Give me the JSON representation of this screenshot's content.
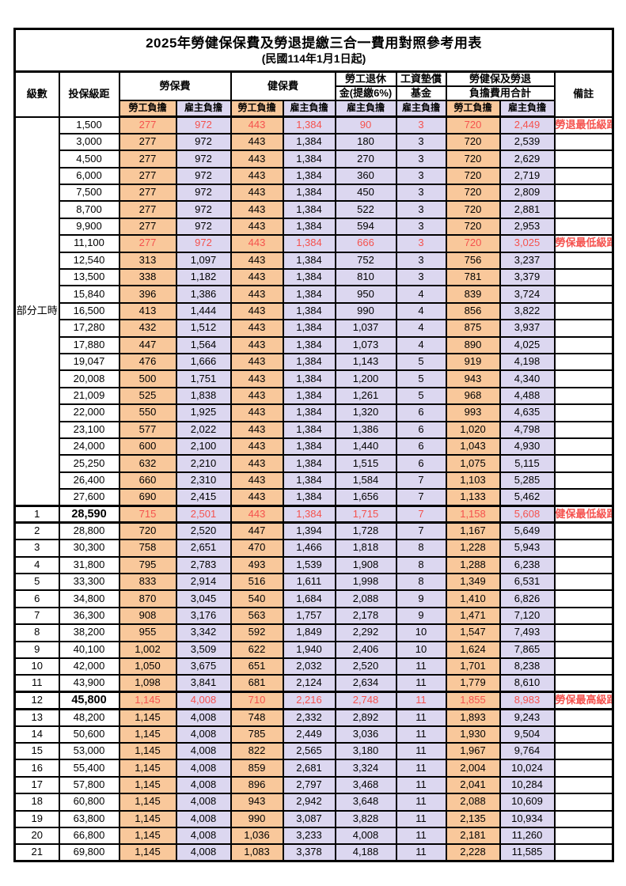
{
  "title": "2025年勞健保保費及勞退提繳三合一費用對照參考用表",
  "subtitle": "(民國114年1月1日起)",
  "colors": {
    "employee_fill": "#F9C89B",
    "employer_fill": "#DCD7F0",
    "red_text": "#F5524E",
    "border": "#000000"
  },
  "header": {
    "level": "級數",
    "bracket": "投保級距",
    "labor_insurance": "勞保費",
    "health_insurance": "健保費",
    "pension_line1": "勞工退休",
    "pension_line2": "金(提繳6%)",
    "wage_fund_line1": "工資墊償",
    "wage_fund_line2": "基金",
    "total_line1": "勞健保及勞退",
    "total_line2": "負擔費用合計",
    "remark": "備註",
    "employee": "勞工負擔",
    "employer": "雇主負擔"
  },
  "part_time": {
    "label": "部分工時",
    "span": 23
  },
  "rows": [
    {
      "level": "",
      "bracket": "1,500",
      "values": [
        "277",
        "972",
        "443",
        "1,384",
        "90",
        "3",
        "720",
        "2,449"
      ],
      "remark": "勞退最低級距",
      "red": true
    },
    {
      "level": "",
      "bracket": "3,000",
      "values": [
        "277",
        "972",
        "443",
        "1,384",
        "180",
        "3",
        "720",
        "2,539"
      ],
      "remark": ""
    },
    {
      "level": "",
      "bracket": "4,500",
      "values": [
        "277",
        "972",
        "443",
        "1,384",
        "270",
        "3",
        "720",
        "2,629"
      ],
      "remark": ""
    },
    {
      "level": "",
      "bracket": "6,000",
      "values": [
        "277",
        "972",
        "443",
        "1,384",
        "360",
        "3",
        "720",
        "2,719"
      ],
      "remark": ""
    },
    {
      "level": "",
      "bracket": "7,500",
      "values": [
        "277",
        "972",
        "443",
        "1,384",
        "450",
        "3",
        "720",
        "2,809"
      ],
      "remark": ""
    },
    {
      "level": "",
      "bracket": "8,700",
      "values": [
        "277",
        "972",
        "443",
        "1,384",
        "522",
        "3",
        "720",
        "2,881"
      ],
      "remark": ""
    },
    {
      "level": "",
      "bracket": "9,900",
      "values": [
        "277",
        "972",
        "443",
        "1,384",
        "594",
        "3",
        "720",
        "2,953"
      ],
      "remark": ""
    },
    {
      "level": "",
      "bracket": "11,100",
      "values": [
        "277",
        "972",
        "443",
        "1,384",
        "666",
        "3",
        "720",
        "3,025"
      ],
      "remark": "勞保最低級距",
      "red": true
    },
    {
      "level": "",
      "bracket": "12,540",
      "values": [
        "313",
        "1,097",
        "443",
        "1,384",
        "752",
        "3",
        "756",
        "3,237"
      ],
      "remark": ""
    },
    {
      "level": "",
      "bracket": "13,500",
      "values": [
        "338",
        "1,182",
        "443",
        "1,384",
        "810",
        "3",
        "781",
        "3,379"
      ],
      "remark": ""
    },
    {
      "level": "",
      "bracket": "15,840",
      "values": [
        "396",
        "1,386",
        "443",
        "1,384",
        "950",
        "4",
        "839",
        "3,724"
      ],
      "remark": ""
    },
    {
      "level": "",
      "bracket": "16,500",
      "values": [
        "413",
        "1,444",
        "443",
        "1,384",
        "990",
        "4",
        "856",
        "3,822"
      ],
      "remark": ""
    },
    {
      "level": "",
      "bracket": "17,280",
      "values": [
        "432",
        "1,512",
        "443",
        "1,384",
        "1,037",
        "4",
        "875",
        "3,937"
      ],
      "remark": ""
    },
    {
      "level": "",
      "bracket": "17,880",
      "values": [
        "447",
        "1,564",
        "443",
        "1,384",
        "1,073",
        "4",
        "890",
        "4,025"
      ],
      "remark": ""
    },
    {
      "level": "",
      "bracket": "19,047",
      "values": [
        "476",
        "1,666",
        "443",
        "1,384",
        "1,143",
        "5",
        "919",
        "4,198"
      ],
      "remark": ""
    },
    {
      "level": "",
      "bracket": "20,008",
      "values": [
        "500",
        "1,751",
        "443",
        "1,384",
        "1,200",
        "5",
        "943",
        "4,340"
      ],
      "remark": ""
    },
    {
      "level": "",
      "bracket": "21,009",
      "values": [
        "525",
        "1,838",
        "443",
        "1,384",
        "1,261",
        "5",
        "968",
        "4,488"
      ],
      "remark": ""
    },
    {
      "level": "",
      "bracket": "22,000",
      "values": [
        "550",
        "1,925",
        "443",
        "1,384",
        "1,320",
        "6",
        "993",
        "4,635"
      ],
      "remark": ""
    },
    {
      "level": "",
      "bracket": "23,100",
      "values": [
        "577",
        "2,022",
        "443",
        "1,384",
        "1,386",
        "6",
        "1,020",
        "4,798"
      ],
      "remark": ""
    },
    {
      "level": "",
      "bracket": "24,000",
      "values": [
        "600",
        "2,100",
        "443",
        "1,384",
        "1,440",
        "6",
        "1,043",
        "4,930"
      ],
      "remark": ""
    },
    {
      "level": "",
      "bracket": "25,250",
      "values": [
        "632",
        "2,210",
        "443",
        "1,384",
        "1,515",
        "6",
        "1,075",
        "5,115"
      ],
      "remark": ""
    },
    {
      "level": "",
      "bracket": "26,400",
      "values": [
        "660",
        "2,310",
        "443",
        "1,384",
        "1,584",
        "7",
        "1,103",
        "5,285"
      ],
      "remark": ""
    },
    {
      "level": "",
      "bracket": "27,600",
      "values": [
        "690",
        "2,415",
        "443",
        "1,384",
        "1,656",
        "7",
        "1,133",
        "5,462"
      ],
      "remark": ""
    },
    {
      "level": "1",
      "bracket": "28,590",
      "values": [
        "715",
        "2,501",
        "443",
        "1,384",
        "1,715",
        "7",
        "1,158",
        "5,608"
      ],
      "remark": "健保最低級距",
      "red": true,
      "hl": true
    },
    {
      "level": "2",
      "bracket": "28,800",
      "values": [
        "720",
        "2,520",
        "447",
        "1,394",
        "1,728",
        "7",
        "1,167",
        "5,649"
      ],
      "remark": ""
    },
    {
      "level": "3",
      "bracket": "30,300",
      "values": [
        "758",
        "2,651",
        "470",
        "1,466",
        "1,818",
        "8",
        "1,228",
        "5,943"
      ],
      "remark": ""
    },
    {
      "level": "4",
      "bracket": "31,800",
      "values": [
        "795",
        "2,783",
        "493",
        "1,539",
        "1,908",
        "8",
        "1,288",
        "6,238"
      ],
      "remark": ""
    },
    {
      "level": "5",
      "bracket": "33,300",
      "values": [
        "833",
        "2,914",
        "516",
        "1,611",
        "1,998",
        "8",
        "1,349",
        "6,531"
      ],
      "remark": ""
    },
    {
      "level": "6",
      "bracket": "34,800",
      "values": [
        "870",
        "3,045",
        "540",
        "1,684",
        "2,088",
        "9",
        "1,410",
        "6,826"
      ],
      "remark": ""
    },
    {
      "level": "7",
      "bracket": "36,300",
      "values": [
        "908",
        "3,176",
        "563",
        "1,757",
        "2,178",
        "9",
        "1,471",
        "7,120"
      ],
      "remark": ""
    },
    {
      "level": "8",
      "bracket": "38,200",
      "values": [
        "955",
        "3,342",
        "592",
        "1,849",
        "2,292",
        "10",
        "1,547",
        "7,493"
      ],
      "remark": ""
    },
    {
      "level": "9",
      "bracket": "40,100",
      "values": [
        "1,002",
        "3,509",
        "622",
        "1,940",
        "2,406",
        "10",
        "1,624",
        "7,865"
      ],
      "remark": ""
    },
    {
      "level": "10",
      "bracket": "42,000",
      "values": [
        "1,050",
        "3,675",
        "651",
        "2,032",
        "2,520",
        "11",
        "1,701",
        "8,238"
      ],
      "remark": ""
    },
    {
      "level": "11",
      "bracket": "43,900",
      "values": [
        "1,098",
        "3,841",
        "681",
        "2,124",
        "2,634",
        "11",
        "1,779",
        "8,610"
      ],
      "remark": ""
    },
    {
      "level": "12",
      "bracket": "45,800",
      "values": [
        "1,145",
        "4,008",
        "710",
        "2,216",
        "2,748",
        "11",
        "1,855",
        "8,983"
      ],
      "remark": "勞保最高級距",
      "red": true,
      "hl": true
    },
    {
      "level": "13",
      "bracket": "48,200",
      "values": [
        "1,145",
        "4,008",
        "748",
        "2,332",
        "2,892",
        "11",
        "1,893",
        "9,243"
      ],
      "remark": ""
    },
    {
      "level": "14",
      "bracket": "50,600",
      "values": [
        "1,145",
        "4,008",
        "785",
        "2,449",
        "3,036",
        "11",
        "1,930",
        "9,504"
      ],
      "remark": ""
    },
    {
      "level": "15",
      "bracket": "53,000",
      "values": [
        "1,145",
        "4,008",
        "822",
        "2,565",
        "3,180",
        "11",
        "1,967",
        "9,764"
      ],
      "remark": ""
    },
    {
      "level": "16",
      "bracket": "55,400",
      "values": [
        "1,145",
        "4,008",
        "859",
        "2,681",
        "3,324",
        "11",
        "2,004",
        "10,024"
      ],
      "remark": ""
    },
    {
      "level": "17",
      "bracket": "57,800",
      "values": [
        "1,145",
        "4,008",
        "896",
        "2,797",
        "3,468",
        "11",
        "2,041",
        "10,284"
      ],
      "remark": ""
    },
    {
      "level": "18",
      "bracket": "60,800",
      "values": [
        "1,145",
        "4,008",
        "943",
        "2,942",
        "3,648",
        "11",
        "2,088",
        "10,609"
      ],
      "remark": ""
    },
    {
      "level": "19",
      "bracket": "63,800",
      "values": [
        "1,145",
        "4,008",
        "990",
        "3,087",
        "3,828",
        "11",
        "2,135",
        "10,934"
      ],
      "remark": ""
    },
    {
      "level": "20",
      "bracket": "66,800",
      "values": [
        "1,145",
        "4,008",
        "1,036",
        "3,233",
        "4,008",
        "11",
        "2,181",
        "11,260"
      ],
      "remark": ""
    },
    {
      "level": "21",
      "bracket": "69,800",
      "values": [
        "1,145",
        "4,008",
        "1,083",
        "3,378",
        "4,188",
        "11",
        "2,228",
        "11,585"
      ],
      "remark": ""
    }
  ]
}
